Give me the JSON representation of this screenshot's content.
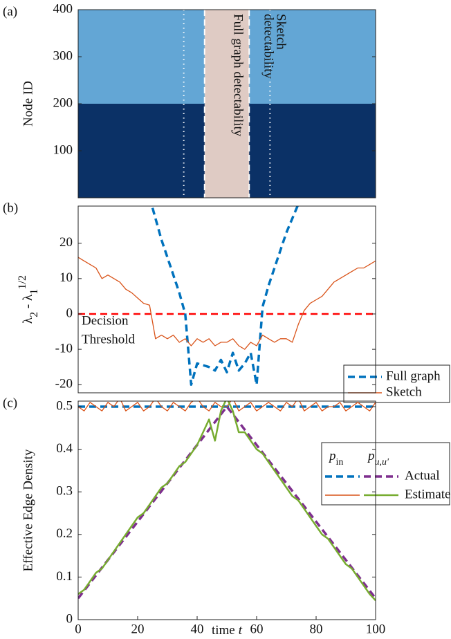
{
  "chart_data": [
    {
      "type": "block",
      "panel_label": "(a)",
      "ylabel": "Node ID",
      "xlim": [
        0,
        100
      ],
      "ylim": [
        0,
        400
      ],
      "yticks": [
        100,
        200,
        300,
        400
      ],
      "blocks": [
        {
          "range": [
            0,
            200
          ],
          "color": "#0b3166"
        },
        {
          "range": [
            200,
            400
          ],
          "color": "#63a6d5"
        }
      ],
      "band": {
        "range": [
          42.5,
          57.5
        ],
        "color": "#dfcbc4"
      },
      "dashed_lines": [
        42.5,
        57.5
      ],
      "dotted_lines": [
        35.5,
        64.5
      ],
      "annotations": [
        {
          "lines": [
            "Full graph detectability"
          ]
        },
        {
          "lines": [
            "Sketch",
            "detectability"
          ]
        }
      ]
    },
    {
      "type": "line",
      "panel_label": "(b)",
      "ylabel": [
        "λ",
        "2",
        " - λ",
        "1",
        "1/2"
      ],
      "xlim": [
        0,
        100
      ],
      "ylim": [
        -22.3,
        30.5
      ],
      "yticks": [
        -20,
        -10,
        0,
        10,
        20
      ],
      "x": [
        0,
        2,
        4,
        6,
        8,
        10,
        12,
        14,
        16,
        18,
        20,
        22,
        24,
        26,
        28,
        30,
        32,
        34,
        36,
        38,
        40,
        42,
        44,
        46,
        48,
        50,
        52,
        54,
        56,
        58,
        60,
        62,
        64,
        66,
        68,
        70,
        72,
        74,
        76,
        78,
        80,
        82,
        84,
        86,
        88,
        90,
        92,
        94,
        96,
        98,
        100
      ],
      "series": [
        {
          "name": "Full graph",
          "color": "#0072bd",
          "dash": "dashed",
          "values": [
            null,
            null,
            null,
            null,
            null,
            null,
            null,
            null,
            null,
            null,
            null,
            null,
            33,
            27,
            21,
            16,
            11,
            6,
            0,
            -20,
            -14,
            -14.5,
            -15,
            -16,
            -13,
            -16.5,
            -11,
            -16,
            -14,
            -11,
            -20,
            2,
            8,
            13,
            18,
            23,
            27,
            31,
            null,
            null,
            null,
            null,
            null,
            null,
            null,
            null,
            null,
            null,
            null,
            null,
            null
          ]
        },
        {
          "name": "Sketch",
          "color": "#d95319",
          "values": [
            16,
            15,
            14,
            13,
            10,
            11,
            10,
            9,
            7,
            6,
            4.5,
            3,
            2.5,
            -7,
            -6,
            -7,
            -6,
            -8,
            -7,
            -9,
            -7,
            -8,
            -7,
            -9,
            -8,
            -8,
            -7,
            -9,
            -10,
            -8,
            -9,
            -6,
            -7,
            -8,
            -7,
            -7,
            -8,
            -3,
            1,
            3,
            4,
            5,
            7,
            9,
            10,
            11,
            12,
            13,
            13,
            14,
            15
          ]
        }
      ],
      "threshold": {
        "value": 0,
        "color": "#ff0000",
        "label": [
          "Decision",
          "Threshold"
        ]
      }
    },
    {
      "type": "line",
      "panel_label": "(c)",
      "ylabel": "Effective Edge Density",
      "xlabel": [
        "time",
        "t"
      ],
      "xlim": [
        0,
        100
      ],
      "ylim": [
        0,
        0.513
      ],
      "yticks": [
        0,
        0.1,
        0.2,
        0.3,
        0.4,
        0.5
      ],
      "xticks": [
        0,
        20,
        40,
        60,
        80,
        100
      ],
      "x": [
        0,
        2,
        4,
        6,
        8,
        10,
        12,
        14,
        16,
        18,
        20,
        22,
        24,
        26,
        28,
        30,
        32,
        34,
        36,
        38,
        40,
        42,
        44,
        46,
        48,
        50,
        52,
        54,
        56,
        58,
        60,
        62,
        64,
        66,
        68,
        70,
        72,
        74,
        76,
        78,
        80,
        82,
        84,
        86,
        88,
        90,
        92,
        94,
        96,
        98,
        100
      ],
      "series": [
        {
          "color": "#0072bd",
          "dash": "dashed",
          "values": [
            0.5,
            0.5,
            0.5,
            0.5,
            0.5,
            0.5,
            0.5,
            0.5,
            0.5,
            0.5,
            0.5,
            0.5,
            0.5,
            0.5,
            0.5,
            0.5,
            0.5,
            0.5,
            0.5,
            0.5,
            0.5,
            0.5,
            0.5,
            0.5,
            0.5,
            0.5,
            0.5,
            0.5,
            0.5,
            0.5,
            0.5,
            0.5,
            0.5,
            0.5,
            0.5,
            0.5,
            0.5,
            0.5,
            0.5,
            0.5,
            0.5,
            0.5,
            0.5,
            0.5,
            0.5,
            0.5,
            0.5,
            0.5,
            0.5,
            0.5,
            0.5
          ]
        },
        {
          "color": "#d95319",
          "values": [
            0.5,
            0.49,
            0.51,
            0.5,
            0.49,
            0.51,
            0.5,
            0.52,
            0.49,
            0.5,
            0.51,
            0.49,
            0.5,
            0.52,
            0.5,
            0.49,
            0.51,
            0.5,
            0.49,
            0.51,
            0.52,
            0.5,
            0.49,
            0.51,
            0.5,
            0.5,
            0.52,
            0.49,
            0.5,
            0.51,
            0.49,
            0.5,
            0.51,
            0.5,
            0.49,
            0.51,
            0.5,
            0.52,
            0.49,
            0.5,
            0.51,
            0.49,
            0.5,
            0.5,
            0.51,
            0.49,
            0.5,
            0.51,
            0.5,
            0.49,
            0.51
          ]
        },
        {
          "color": "#7e2f8e",
          "dash": "dashed",
          "values": [
            0.05,
            0.068,
            0.086,
            0.104,
            0.122,
            0.14,
            0.158,
            0.176,
            0.194,
            0.212,
            0.23,
            0.248,
            0.266,
            0.284,
            0.302,
            0.32,
            0.338,
            0.356,
            0.374,
            0.392,
            0.41,
            0.428,
            0.446,
            0.464,
            0.482,
            0.5,
            0.482,
            0.464,
            0.446,
            0.428,
            0.41,
            0.392,
            0.374,
            0.356,
            0.338,
            0.32,
            0.302,
            0.284,
            0.266,
            0.248,
            0.23,
            0.212,
            0.194,
            0.176,
            0.158,
            0.14,
            0.122,
            0.104,
            0.086,
            0.068,
            0.05
          ]
        },
        {
          "color": "#77ac30",
          "values": [
            0.06,
            0.07,
            0.09,
            0.11,
            0.12,
            0.14,
            0.16,
            0.18,
            0.2,
            0.22,
            0.24,
            0.25,
            0.27,
            0.29,
            0.31,
            0.32,
            0.34,
            0.36,
            0.37,
            0.39,
            0.41,
            0.44,
            0.47,
            0.42,
            0.49,
            0.52,
            0.49,
            0.44,
            0.44,
            0.42,
            0.4,
            0.39,
            0.37,
            0.35,
            0.33,
            0.31,
            0.29,
            0.28,
            0.26,
            0.24,
            0.22,
            0.2,
            0.19,
            0.17,
            0.15,
            0.13,
            0.12,
            0.1,
            0.08,
            0.06,
            0.045
          ]
        }
      ],
      "legend": {
        "columns": [
          [
            "p",
            "in"
          ],
          [
            "p",
            "u,u′"
          ]
        ],
        "rows": [
          "Actual",
          "Estimate"
        ]
      }
    }
  ]
}
